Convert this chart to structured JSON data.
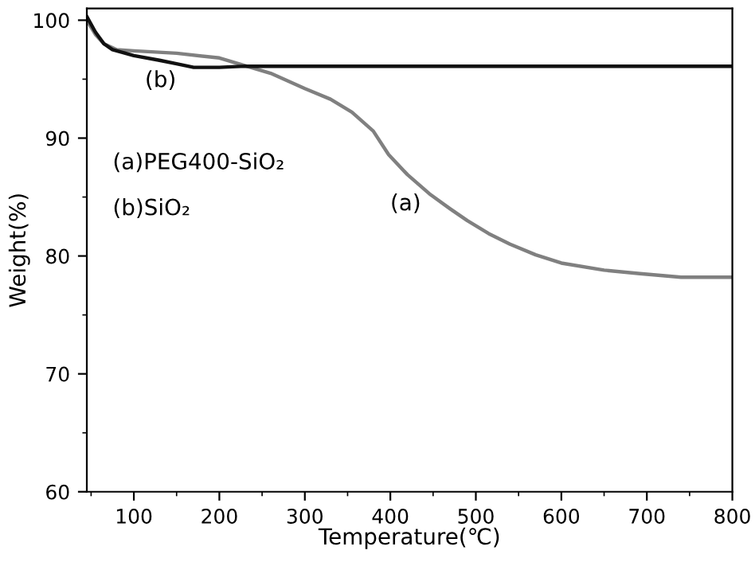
{
  "chart_data": {
    "type": "line",
    "xlabel": "Temperature(℃)",
    "ylabel": "Weight(%)",
    "xlim": [
      45,
      800
    ],
    "ylim": [
      60,
      101
    ],
    "xticks": [
      100,
      200,
      300,
      400,
      500,
      600,
      700,
      800
    ],
    "yticks": [
      60,
      70,
      80,
      90,
      100
    ],
    "grid": false,
    "marker": "none",
    "line_style": "solid",
    "series": [
      {
        "color": "#808080",
        "x": [
          45,
          55,
          65,
          80,
          100,
          150,
          200,
          232,
          260,
          300,
          330,
          355,
          380,
          398,
          420,
          447,
          470,
          490,
          515,
          540,
          570,
          600,
          650,
          692,
          740,
          800
        ],
        "values": [
          100,
          98.8,
          98,
          97.5,
          97.4,
          97.2,
          96.8,
          96.1,
          95.5,
          94.2,
          93.3,
          92.2,
          90.6,
          88.6,
          86.9,
          85.2,
          84,
          83,
          81.9,
          81,
          80.1,
          79.4,
          78.8,
          78.5,
          78.2,
          78.2
        ]
      },
      {
        "color": "#111111",
        "x": [
          45,
          55,
          65,
          75,
          100,
          130,
          150,
          170,
          200,
          230,
          250,
          300,
          400,
          500,
          600,
          700,
          800
        ],
        "values": [
          100.3,
          99,
          98,
          97.5,
          97,
          96.6,
          96.3,
          96,
          96,
          96.1,
          96.1,
          96.1,
          96.1,
          96.1,
          96.1,
          96.1,
          96.1
        ]
      }
    ],
    "annotations": [
      "(b)",
      "(a)",
      "(a)PEG400-SiO₂",
      "(b)SiO₂"
    ]
  }
}
